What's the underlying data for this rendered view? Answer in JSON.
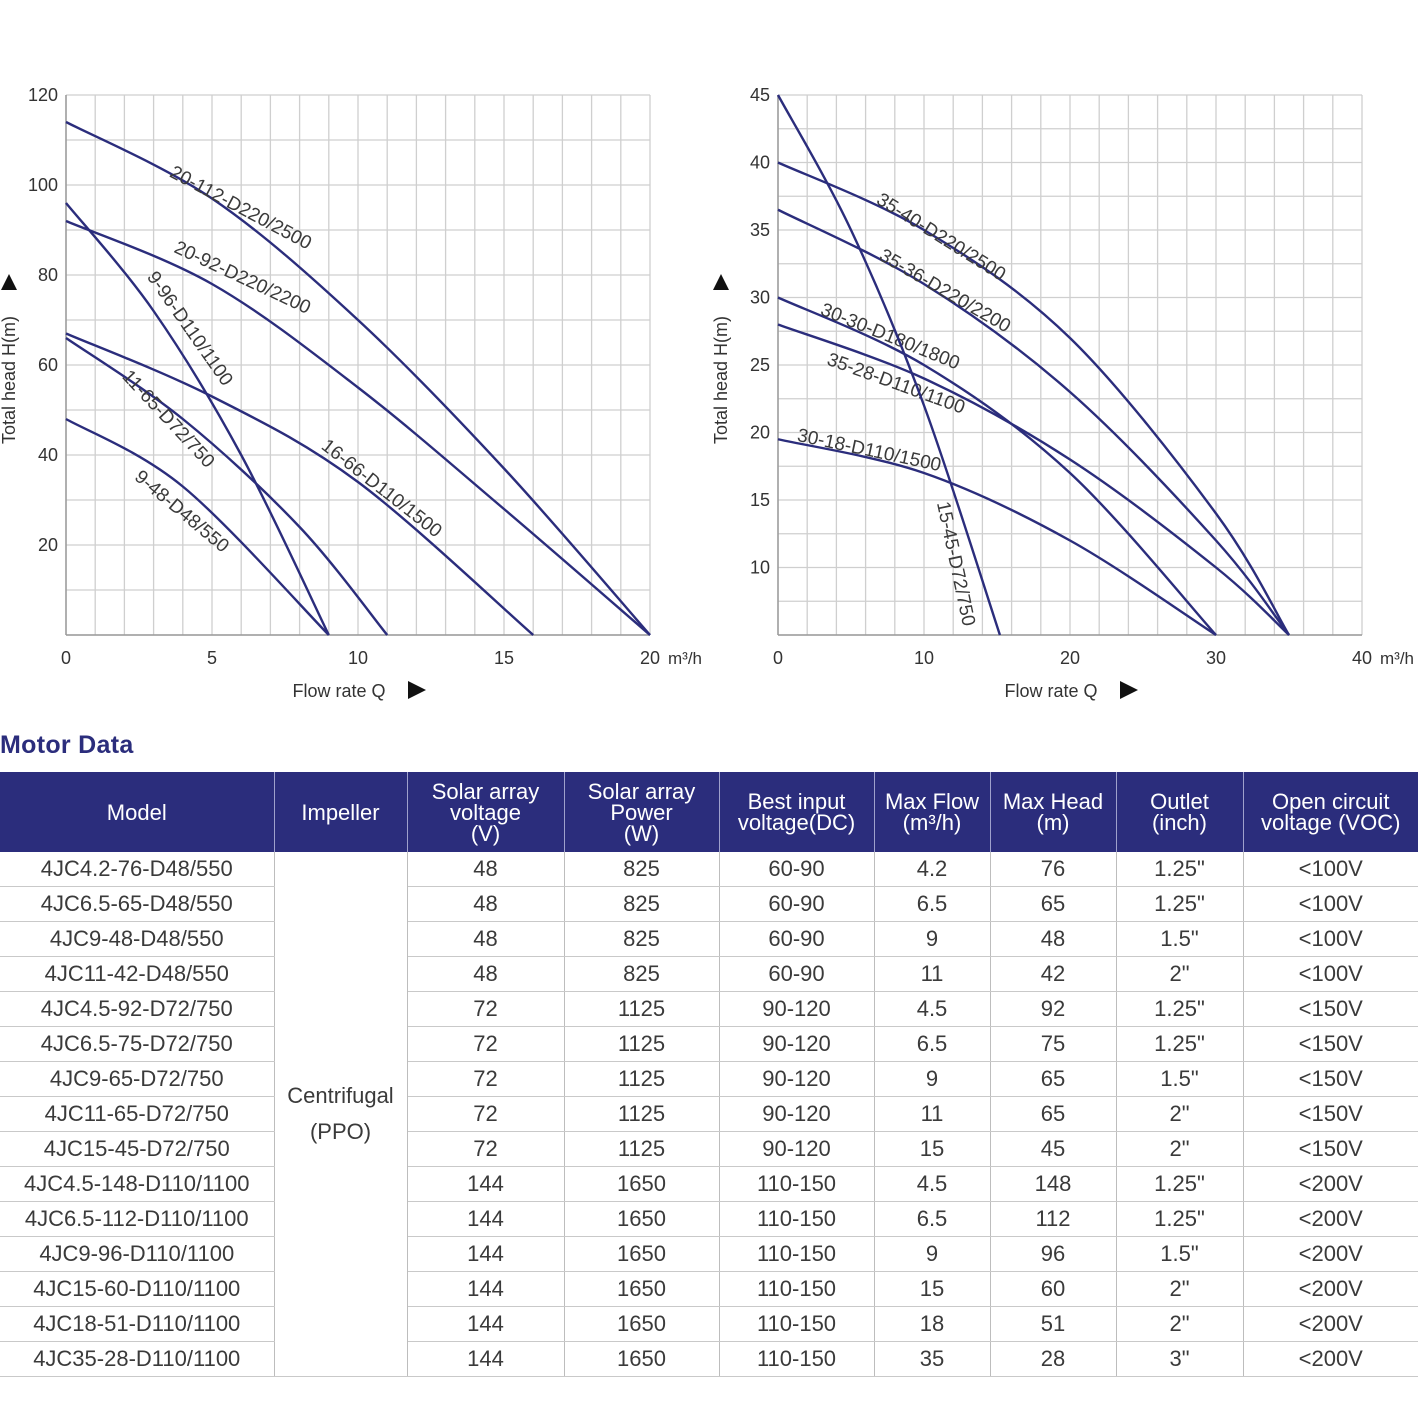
{
  "colors": {
    "curve": "#2b2d7c",
    "grid": "#cfcfcf",
    "header_bg": "#2b2d7c",
    "axis_text": "#333333"
  },
  "chart_data": [
    {
      "type": "line",
      "title": "",
      "xlabel": "Flow rate Q",
      "ylabel": "Total head H(m)",
      "x_unit": "m³/h",
      "xlim": [
        0,
        20
      ],
      "ylim": [
        0,
        120
      ],
      "x_ticks": [
        0,
        5,
        10,
        15,
        20
      ],
      "y_ticks": [
        20,
        40,
        60,
        80,
        100,
        120
      ],
      "series": [
        {
          "name": "20-112-D220/2500",
          "points": [
            [
              0,
              114
            ],
            [
              5,
              97
            ],
            [
              10,
              70
            ],
            [
              15,
              37
            ],
            [
              20,
              0
            ]
          ]
        },
        {
          "name": "20-92-D220/2200",
          "points": [
            [
              0,
              92
            ],
            [
              5,
              78
            ],
            [
              10,
              55
            ],
            [
              15,
              28
            ],
            [
              20,
              0
            ]
          ]
        },
        {
          "name": "9-96-D110/1100",
          "points": [
            [
              0,
              96
            ],
            [
              3,
              72
            ],
            [
              6,
              40
            ],
            [
              9,
              0
            ]
          ]
        },
        {
          "name": "16-66-D110/1500",
          "points": [
            [
              0,
              67
            ],
            [
              5,
              53
            ],
            [
              10,
              34
            ],
            [
              16,
              0
            ]
          ]
        },
        {
          "name": "11-65-D72/750",
          "points": [
            [
              0,
              66
            ],
            [
              4,
              48
            ],
            [
              8,
              24
            ],
            [
              11,
              0
            ]
          ]
        },
        {
          "name": "9-48-D48/550",
          "points": [
            [
              0,
              48
            ],
            [
              4,
              33
            ],
            [
              9,
              0
            ]
          ]
        }
      ]
    },
    {
      "type": "line",
      "title": "",
      "xlabel": "Flow rate Q",
      "ylabel": "Total head H(m)",
      "x_unit": "m³/h",
      "xlim": [
        0,
        40
      ],
      "ylim": [
        5,
        45
      ],
      "x_ticks": [
        0,
        10,
        20,
        30,
        40
      ],
      "y_ticks": [
        10,
        15,
        20,
        25,
        30,
        35,
        40,
        45
      ],
      "series": [
        {
          "name": "35-40-D220/2500",
          "points": [
            [
              0,
              40
            ],
            [
              10,
              35
            ],
            [
              20,
              27
            ],
            [
              30,
              14
            ],
            [
              35,
              5
            ]
          ]
        },
        {
          "name": "35-36-D220/2200",
          "points": [
            [
              0,
              36.5
            ],
            [
              10,
              31
            ],
            [
              20,
              23
            ],
            [
              30,
              12
            ],
            [
              35,
              5
            ]
          ]
        },
        {
          "name": "30-30-D180/1800",
          "points": [
            [
              0,
              30
            ],
            [
              10,
              25
            ],
            [
              20,
              17
            ],
            [
              30,
              5
            ]
          ]
        },
        {
          "name": "35-28-D110/1100",
          "points": [
            [
              0,
              28
            ],
            [
              10,
              24
            ],
            [
              20,
              18
            ],
            [
              30,
              10
            ],
            [
              35,
              5
            ]
          ]
        },
        {
          "name": "30-18-D110/1500",
          "points": [
            [
              0,
              19.5
            ],
            [
              10,
              17
            ],
            [
              20,
              12
            ],
            [
              30,
              5
            ]
          ]
        },
        {
          "name": "15-45-D72/750",
          "points": [
            [
              0,
              45
            ],
            [
              5,
              35
            ],
            [
              10,
              22
            ],
            [
              15.2,
              5
            ]
          ]
        }
      ]
    }
  ],
  "table": {
    "title": "Motor Data",
    "headers": {
      "model": "Model",
      "impeller": "Impeller",
      "voltage": [
        "Solar array",
        "voltage",
        "(V)"
      ],
      "power": [
        "Solar array",
        "Power",
        "(W)"
      ],
      "best_input": [
        "Best input",
        "voltage(DC)"
      ],
      "max_flow": [
        "Max Flow",
        "(m³/h)"
      ],
      "max_head": [
        "Max Head",
        "(m)"
      ],
      "outlet": [
        "Outlet",
        "(inch)"
      ],
      "voc": [
        "Open circuit",
        "voltage (VOC)"
      ]
    },
    "impeller": [
      "Centrifugal",
      "(PPO)"
    ],
    "rows": [
      [
        "4JC4.2-76-D48/550",
        "48",
        "825",
        "60-90",
        "4.2",
        "76",
        "1.25\"",
        "<100V"
      ],
      [
        "4JC6.5-65-D48/550",
        "48",
        "825",
        "60-90",
        "6.5",
        "65",
        "1.25\"",
        "<100V"
      ],
      [
        "4JC9-48-D48/550",
        "48",
        "825",
        "60-90",
        "9",
        "48",
        "1.5\"",
        "<100V"
      ],
      [
        "4JC11-42-D48/550",
        "48",
        "825",
        "60-90",
        "11",
        "42",
        "2\"",
        "<100V"
      ],
      [
        "4JC4.5-92-D72/750",
        "72",
        "1125",
        "90-120",
        "4.5",
        "92",
        "1.25\"",
        "<150V"
      ],
      [
        "4JC6.5-75-D72/750",
        "72",
        "1125",
        "90-120",
        "6.5",
        "75",
        "1.25\"",
        "<150V"
      ],
      [
        "4JC9-65-D72/750",
        "72",
        "1125",
        "90-120",
        "9",
        "65",
        "1.5\"",
        "<150V"
      ],
      [
        "4JC11-65-D72/750",
        "72",
        "1125",
        "90-120",
        "11",
        "65",
        "2\"",
        "<150V"
      ],
      [
        "4JC15-45-D72/750",
        "72",
        "1125",
        "90-120",
        "15",
        "45",
        "2\"",
        "<150V"
      ],
      [
        "4JC4.5-148-D110/1100",
        "144",
        "1650",
        "110-150",
        "4.5",
        "148",
        "1.25\"",
        "<200V"
      ],
      [
        "4JC6.5-112-D110/1100",
        "144",
        "1650",
        "110-150",
        "6.5",
        "112",
        "1.25\"",
        "<200V"
      ],
      [
        "4JC9-96-D110/1100",
        "144",
        "1650",
        "110-150",
        "9",
        "96",
        "1.5\"",
        "<200V"
      ],
      [
        "4JC15-60-D110/1100",
        "144",
        "1650",
        "110-150",
        "15",
        "60",
        "2\"",
        "<200V"
      ],
      [
        "4JC18-51-D110/1100",
        "144",
        "1650",
        "110-150",
        "18",
        "51",
        "2\"",
        "<200V"
      ],
      [
        "4JC35-28-D110/1100",
        "144",
        "1650",
        "110-150",
        "35",
        "28",
        "3\"",
        "<200V"
      ]
    ]
  }
}
